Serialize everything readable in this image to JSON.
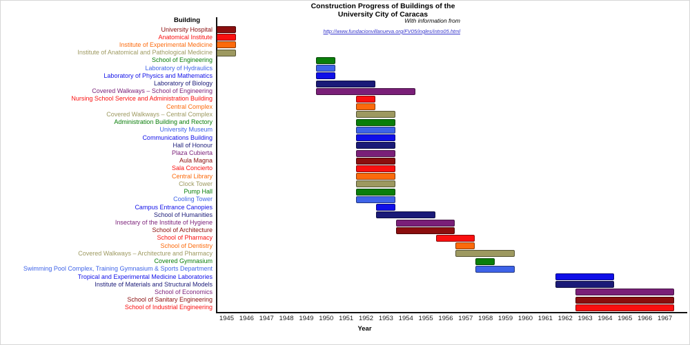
{
  "colors": {
    "link": "#3535CC",
    "axis": "#111111",
    "text": "#000000"
  },
  "chart_data": {
    "type": "bar",
    "variant": "gantt",
    "title": "Construction Progress of Buildings of the University City of Caracas",
    "title_line1": "Construction Progress of Buildings of the",
    "title_line2": "University City of Caracas",
    "subtitle": "With information from",
    "source_link": "http://www.fundacionvillanueva.org/FV05/ingles/intro05.html",
    "xlabel": "Year",
    "y_header": "Building",
    "xlim": [
      1944.5,
      1967.5
    ],
    "x_ticks": [
      1945,
      1946,
      1947,
      1948,
      1949,
      1950,
      1951,
      1952,
      1953,
      1954,
      1955,
      1956,
      1957,
      1958,
      1959,
      1960,
      1961,
      1962,
      1963,
      1964,
      1965,
      1966,
      1967
    ],
    "grid": false,
    "legend": "none",
    "bar_unit": "calendar years, inclusive start-end",
    "rows": [
      {
        "label": "University Hospital",
        "start": 1945,
        "end": 1945,
        "color": "#8B0E0E"
      },
      {
        "label": "Anatomical Institute",
        "start": 1945,
        "end": 1945,
        "color": "#FA1010"
      },
      {
        "label": "Institute of Experimental Medicine",
        "start": 1945,
        "end": 1945,
        "color": "#FC6A0C"
      },
      {
        "label": "Institute of Anatomical and Pathological Medicine",
        "start": 1945,
        "end": 1945,
        "color": "#9D9960"
      },
      {
        "label": "School of Engineering",
        "start": 1950,
        "end": 1950,
        "color": "#0A7E0A"
      },
      {
        "label": "Laboratory of Hydraulics",
        "start": 1950,
        "end": 1950,
        "color": "#3E63E8"
      },
      {
        "label": "Laboratory of Physics and Mathematics",
        "start": 1950,
        "end": 1950,
        "color": "#0F0FE8"
      },
      {
        "label": "Laboratory of Biology",
        "start": 1950,
        "end": 1952,
        "color": "#1A1A78"
      },
      {
        "label": "Covered Walkways – School of Engineering",
        "start": 1950,
        "end": 1954,
        "color": "#7A1F78"
      },
      {
        "label": "Nursing School Service and Administration Building",
        "start": 1952,
        "end": 1952,
        "color": "#FA1010"
      },
      {
        "label": "Central Complex",
        "start": 1952,
        "end": 1952,
        "color": "#FC6A0C"
      },
      {
        "label": "Covered Walkways – Central Complex",
        "start": 1952,
        "end": 1953,
        "color": "#9D9960"
      },
      {
        "label": "Administration Building and Rectory",
        "start": 1952,
        "end": 1953,
        "color": "#0A7E0A"
      },
      {
        "label": "University Museum",
        "start": 1952,
        "end": 1953,
        "color": "#3E63E8"
      },
      {
        "label": "Communications Building",
        "start": 1952,
        "end": 1953,
        "color": "#0F0FE8"
      },
      {
        "label": "Hall of Honour",
        "start": 1952,
        "end": 1953,
        "color": "#1A1A78"
      },
      {
        "label": "Plaza Cubierta",
        "start": 1952,
        "end": 1953,
        "color": "#7A1F78"
      },
      {
        "label": "Aula Magna",
        "start": 1952,
        "end": 1953,
        "color": "#8B0E0E"
      },
      {
        "label": "Sala Concierto",
        "start": 1952,
        "end": 1953,
        "color": "#FA1010"
      },
      {
        "label": "Central Library",
        "start": 1952,
        "end": 1953,
        "color": "#FC6A0C"
      },
      {
        "label": "Clock Tower",
        "start": 1952,
        "end": 1953,
        "color": "#9D9960"
      },
      {
        "label": "Pump Hall",
        "start": 1952,
        "end": 1953,
        "color": "#0A7E0A"
      },
      {
        "label": "Cooling Tower",
        "start": 1952,
        "end": 1953,
        "color": "#3E63E8"
      },
      {
        "label": "Campus Entrance Canopies",
        "start": 1953,
        "end": 1953,
        "color": "#0F0FE8"
      },
      {
        "label": "School of Humanities",
        "start": 1953,
        "end": 1955,
        "color": "#1A1A78"
      },
      {
        "label": "Insectary of the Institute of Hygiene",
        "start": 1954,
        "end": 1956,
        "color": "#7A1F78"
      },
      {
        "label": "School of Architecture",
        "start": 1954,
        "end": 1956,
        "color": "#8B0E0E"
      },
      {
        "label": "School of Pharmacy",
        "start": 1956,
        "end": 1957,
        "color": "#FA1010"
      },
      {
        "label": "School of Dentistry",
        "start": 1957,
        "end": 1957,
        "color": "#FC6A0C"
      },
      {
        "label": "Covered Walkways – Architecture and Pharmacy",
        "start": 1957,
        "end": 1959,
        "color": "#9D9960"
      },
      {
        "label": "Covered Gymnasium",
        "start": 1958,
        "end": 1958,
        "color": "#0A7E0A"
      },
      {
        "label": "Swimming Pool Complex, Training Gymnasium & Sports Department",
        "start": 1958,
        "end": 1959,
        "color": "#3E63E8"
      },
      {
        "label": "Tropical and Experimental Medicine Laboratories",
        "start": 1962,
        "end": 1964,
        "color": "#0F0FE8"
      },
      {
        "label": "Institute of Materials and Structural Models",
        "start": 1962,
        "end": 1964,
        "color": "#1A1A78"
      },
      {
        "label": "School of Economics",
        "start": 1963,
        "end": 1967,
        "color": "#7A1F78"
      },
      {
        "label": "School of Sanitary Engineering",
        "start": 1963,
        "end": 1967,
        "color": "#8B0E0E"
      },
      {
        "label": "School of Industrial Engineering",
        "start": 1963,
        "end": 1967,
        "color": "#FA1010"
      }
    ]
  }
}
